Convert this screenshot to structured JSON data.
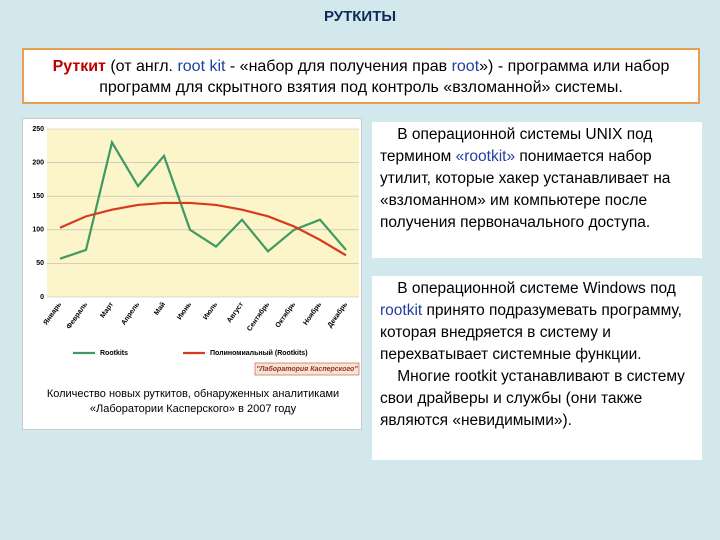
{
  "title": "РУТКИТЫ",
  "intro": [
    "Руткит",
    " (от англ. ",
    "root kit",
    " - «набор для получения прав ",
    "root",
    "») - программа или набор программ для скрытного взятия под контроль «взломанной» системы."
  ],
  "unix": [
    "В операционной системы UNIX под термином ",
    "«rootkit»",
    " понимается набор утилит, которые хакер устанавливает на «взломанном» им компьютере после получения первоначального доступа."
  ],
  "windows": [
    "В операционной системе Windows под ",
    "rootkit",
    " принято подразумевать программу, которая внедряется в систему и перехватывает системные функции.",
    "Многие rootkit устанавливают в систему свои драйверы и службы (они также являются «невидимыми»)."
  ],
  "caption": "Количество новых руткитов, обнаруженных аналитиками «Лаборатории Касперского» в 2007 году",
  "chart_data": {
    "type": "line",
    "categories": [
      "Январь",
      "Февраль",
      "Март",
      "Апрель",
      "Май",
      "Июнь",
      "Июль",
      "Август",
      "Сентябрь",
      "Октябрь",
      "Ноябрь",
      "Декабрь"
    ],
    "series": [
      {
        "name": "Rootkits",
        "color": "#3d9a62",
        "values": [
          57,
          70,
          230,
          165,
          210,
          100,
          75,
          115,
          68,
          100,
          115,
          70
        ]
      },
      {
        "name": "Полиномиальный (Rootkits)",
        "color": "#d83a1e",
        "values": [
          103,
          120,
          130,
          137,
          140,
          140,
          137,
          130,
          120,
          105,
          85,
          62
        ]
      }
    ],
    "ylim": [
      0,
      250
    ],
    "yticks": [
      0,
      50,
      100,
      150,
      200,
      250
    ],
    "grid": true,
    "source": "\"Лаборатория Касперского\""
  }
}
